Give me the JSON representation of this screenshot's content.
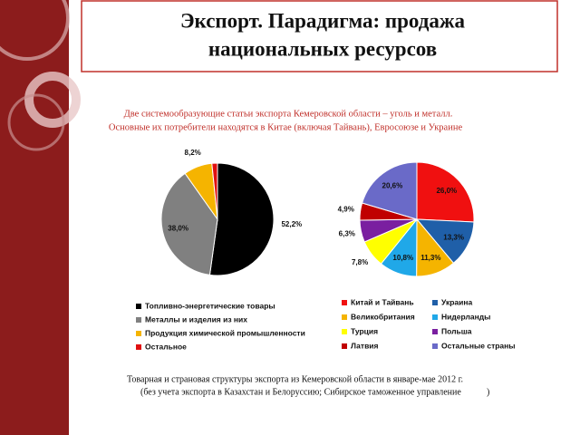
{
  "slide": {
    "title_lines": [
      "Экспорт. Парадигма: продажа",
      "национальных ресурсов"
    ],
    "subtitle_lines": [
      "Две системообразующие статьи экспорта Кемеровской области – уголь и металл.",
      "Основные их потребители находятся в Китае (включая Тайвань), Евросоюзе и Украине"
    ],
    "footnote_lines": [
      "Товарная и страновая структуры экспорта из Кемеровской области в январе-мае 2012 г.",
      "(без учета экспорта в Казахстан и Белоруссию; Сибирское таможенное управление"
    ],
    "footnote_close": ")"
  },
  "chart_data": [
    {
      "type": "pie",
      "categories": [
        "Топливно-энергетические товары",
        "Металлы и изделия из них",
        "Продукция химической промышленности",
        "Остальное"
      ],
      "values": [
        52.2,
        38.0,
        8.2,
        1.6
      ],
      "value_labels": [
        "52,2%",
        "38,0%",
        "8,2%",
        null
      ],
      "colors": [
        "#000000",
        "#808080",
        "#f5b400",
        "#e01010"
      ],
      "legend": "bottom"
    },
    {
      "type": "pie",
      "categories": [
        "Китай и Тайвань",
        "Украина",
        "Великобритания",
        "Нидерланды",
        "Турция",
        "Польша",
        "Латвия",
        "Остальные страны"
      ],
      "values": [
        26.0,
        13.3,
        11.3,
        10.8,
        7.8,
        6.3,
        4.9,
        20.6
      ],
      "value_labels": [
        "26,0%",
        "13,3%",
        "11,3%",
        "10,8%",
        "7,8%",
        "6,3%",
        "4,9%",
        "20,6%"
      ],
      "colors": [
        "#f01010",
        "#1f5fa8",
        "#f5b400",
        "#20a8e8",
        "#ffff00",
        "#7a1fa0",
        "#c00000",
        "#6a6ac8"
      ],
      "legend": "bottom"
    }
  ]
}
